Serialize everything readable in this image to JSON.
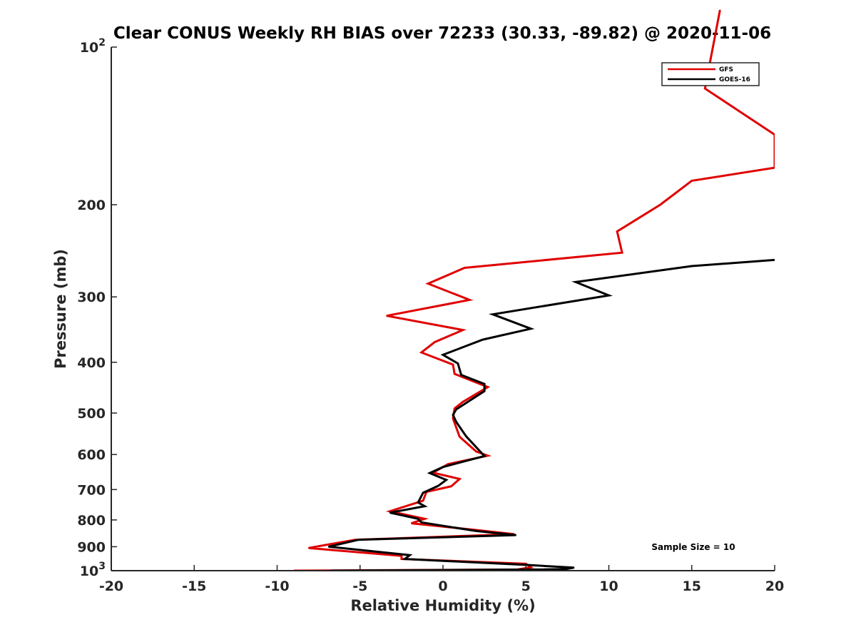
{
  "chart_data": {
    "type": "line",
    "title": "Clear CONUS Weekly RH BIAS over 72233 (30.33, -89.82) @ 2020-11-06",
    "xlabel": "Relative Humidity (%)",
    "ylabel": "Pressure (mb)",
    "xlim": [
      -20,
      20
    ],
    "ylim": [
      100,
      1000
    ],
    "y_scale": "log",
    "y_reversed": true,
    "grid": false,
    "legend_position": "top-right",
    "x_ticks": [
      -20,
      -15,
      -10,
      -5,
      0,
      5,
      10,
      15,
      20
    ],
    "x_tick_labels": [
      "-20",
      "-15",
      "-10",
      "-5",
      "0",
      "5",
      "10",
      "15",
      "20"
    ],
    "y_ticks": [
      100,
      200,
      300,
      400,
      500,
      600,
      700,
      800,
      900,
      1000
    ],
    "y_tick_labels": [
      {
        "base": "10",
        "exp": "2"
      },
      {
        "text": "200"
      },
      {
        "text": "300"
      },
      {
        "text": "400"
      },
      {
        "text": "500"
      },
      {
        "text": "600"
      },
      {
        "text": "700"
      },
      {
        "text": "800"
      },
      {
        "text": "900"
      },
      {
        "base": "10",
        "exp": "3"
      }
    ],
    "annotation": "Sample Size = 10",
    "series": [
      {
        "name": "GFS",
        "color": "#e00000",
        "points": [
          [
            16.7,
            85
          ],
          [
            15.8,
            120
          ],
          [
            20,
            147
          ],
          [
            20,
            170
          ],
          [
            15,
            180
          ],
          [
            13.1,
            200
          ],
          [
            10.5,
            225
          ],
          [
            10.8,
            247
          ],
          [
            1.3,
            264
          ],
          [
            -0.9,
            283
          ],
          [
            1.6,
            304
          ],
          [
            -3.4,
            326
          ],
          [
            1.2,
            347
          ],
          [
            -0.5,
            366
          ],
          [
            -1.3,
            383
          ],
          [
            0.6,
            404
          ],
          [
            0.7,
            421
          ],
          [
            2.7,
            446
          ],
          [
            1.2,
            476
          ],
          [
            0.7,
            490
          ],
          [
            0.6,
            512
          ],
          [
            1.0,
            555
          ],
          [
            2.0,
            592
          ],
          [
            2.7,
            603
          ],
          [
            0.3,
            626
          ],
          [
            -0.6,
            650
          ],
          [
            1.0,
            668
          ],
          [
            0.5,
            690
          ],
          [
            -1.0,
            707
          ],
          [
            -1.2,
            735
          ],
          [
            -3.2,
            770
          ],
          [
            -1.1,
            796
          ],
          [
            -1.9,
            812
          ],
          [
            2.3,
            838
          ],
          [
            4.3,
            852
          ],
          [
            -5.3,
            873
          ],
          [
            -8.1,
            905
          ],
          [
            -2.5,
            937
          ],
          [
            -2.5,
            950
          ],
          [
            5.0,
            970
          ],
          [
            5.3,
            985
          ],
          [
            4.5,
            995
          ],
          [
            -9.0,
            1000
          ]
        ]
      },
      {
        "name": "GOES-16",
        "color": "#000000",
        "points": [
          [
            20,
            255
          ],
          [
            15,
            262
          ],
          [
            8.0,
            281
          ],
          [
            10.0,
            298
          ],
          [
            3.0,
            324
          ],
          [
            5.3,
            345
          ],
          [
            2.4,
            362
          ],
          [
            0,
            387
          ],
          [
            0.9,
            402
          ],
          [
            1.1,
            423
          ],
          [
            2.5,
            440
          ],
          [
            2.5,
            454
          ],
          [
            0.8,
            492
          ],
          [
            0.6,
            504
          ],
          [
            0.8,
            520
          ],
          [
            1.4,
            554
          ],
          [
            2.2,
            590
          ],
          [
            2.5,
            604
          ],
          [
            0,
            634
          ],
          [
            -0.8,
            651
          ],
          [
            0.2,
            671
          ],
          [
            -0.3,
            689
          ],
          [
            -1.2,
            710
          ],
          [
            -1.5,
            741
          ],
          [
            -1.1,
            753
          ],
          [
            -3.2,
            775
          ],
          [
            -1.5,
            796
          ],
          [
            -1.3,
            809
          ],
          [
            2.0,
            840
          ],
          [
            4.4,
            855
          ],
          [
            -5.1,
            873
          ],
          [
            -6.9,
            900
          ],
          [
            -2.0,
            934
          ],
          [
            -2.3,
            950
          ],
          [
            5.0,
            975
          ],
          [
            7.9,
            987
          ],
          [
            7.4,
            993
          ],
          [
            5.5,
            995
          ],
          [
            -6.8,
            1000
          ]
        ]
      }
    ]
  }
}
